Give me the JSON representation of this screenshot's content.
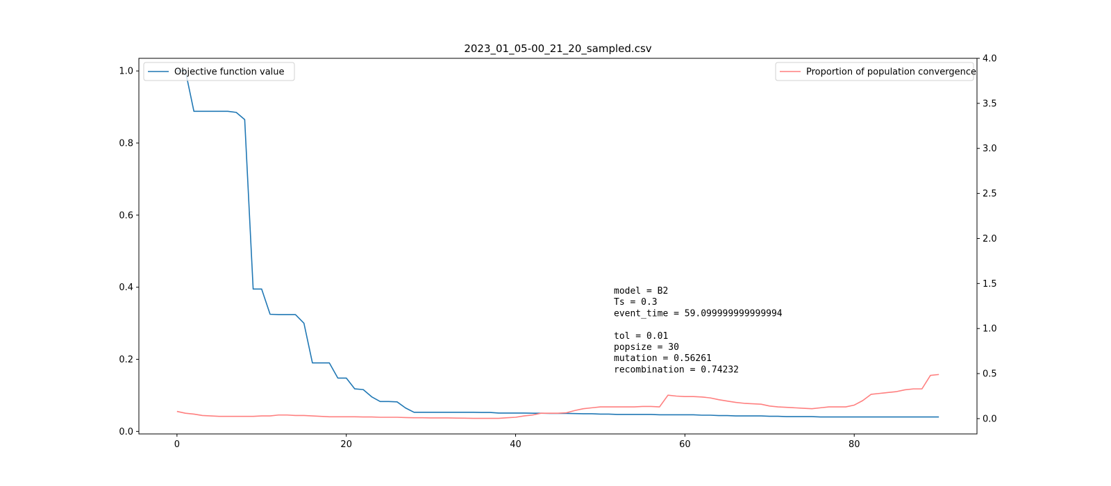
{
  "chart_data": {
    "type": "line",
    "title": "2023_01_05-00_21_20_sampled.csv",
    "xlabel": "",
    "ylabel": "",
    "xlim": [
      -4.5,
      94.5
    ],
    "ylim_left": [
      -0.007,
      1.035
    ],
    "ylim_right": [
      -0.17,
      4.0
    ],
    "x_ticks": [
      0,
      20,
      40,
      60,
      80
    ],
    "y_left_ticks": [
      0.0,
      0.2,
      0.4,
      0.6,
      0.8,
      1.0
    ],
    "y_right_ticks": [
      0.0,
      0.5,
      1.0,
      1.5,
      2.0,
      2.5,
      3.0,
      3.5,
      4.0
    ],
    "legend_left_placement": "upper left",
    "legend_right_placement": "upper right",
    "grid": false,
    "series": [
      {
        "name": "Objective function value",
        "axis": "left",
        "color": "#1f77b4",
        "x": [
          0,
          1,
          2,
          3,
          4,
          5,
          6,
          7,
          8,
          9,
          10,
          11,
          12,
          13,
          14,
          15,
          16,
          17,
          18,
          19,
          20,
          21,
          22,
          23,
          24,
          25,
          26,
          27,
          28,
          29,
          30,
          31,
          32,
          33,
          34,
          35,
          36,
          37,
          38,
          39,
          40,
          41,
          42,
          43,
          44,
          45,
          46,
          47,
          48,
          49,
          50,
          51,
          52,
          53,
          54,
          55,
          56,
          57,
          58,
          59,
          60,
          61,
          62,
          63,
          64,
          65,
          66,
          67,
          68,
          69,
          70,
          71,
          72,
          73,
          74,
          75,
          76,
          77,
          78,
          79,
          80,
          81,
          82,
          83,
          84,
          85,
          86,
          87,
          88,
          89,
          90
        ],
        "values": [
          1.0,
          1.0,
          0.888,
          0.888,
          0.888,
          0.888,
          0.888,
          0.885,
          0.865,
          0.395,
          0.395,
          0.325,
          0.324,
          0.324,
          0.324,
          0.3,
          0.19,
          0.19,
          0.19,
          0.148,
          0.148,
          0.118,
          0.116,
          0.096,
          0.083,
          0.083,
          0.082,
          0.065,
          0.053,
          0.053,
          0.053,
          0.053,
          0.053,
          0.053,
          0.053,
          0.053,
          0.0525,
          0.0525,
          0.051,
          0.051,
          0.051,
          0.051,
          0.0505,
          0.0505,
          0.05,
          0.05,
          0.05,
          0.0495,
          0.049,
          0.049,
          0.048,
          0.048,
          0.047,
          0.047,
          0.047,
          0.047,
          0.047,
          0.046,
          0.046,
          0.046,
          0.046,
          0.046,
          0.045,
          0.045,
          0.044,
          0.044,
          0.043,
          0.043,
          0.043,
          0.043,
          0.042,
          0.042,
          0.041,
          0.041,
          0.041,
          0.041,
          0.04,
          0.04,
          0.04,
          0.04,
          0.04,
          0.04,
          0.04,
          0.04,
          0.04,
          0.04,
          0.04,
          0.04,
          0.04,
          0.04,
          0.04
        ]
      },
      {
        "name": "Proportion of population convergence",
        "axis": "right",
        "color": "#ff7f7f",
        "x": [
          0,
          1,
          2,
          3,
          4,
          5,
          6,
          7,
          8,
          9,
          10,
          11,
          12,
          13,
          14,
          15,
          16,
          17,
          18,
          19,
          20,
          21,
          22,
          23,
          24,
          25,
          26,
          27,
          28,
          29,
          30,
          31,
          32,
          33,
          34,
          35,
          36,
          37,
          38,
          39,
          40,
          41,
          42,
          43,
          44,
          45,
          46,
          47,
          48,
          49,
          50,
          51,
          52,
          53,
          54,
          55,
          56,
          57,
          58,
          59,
          60,
          61,
          62,
          63,
          64,
          65,
          66,
          67,
          68,
          69,
          70,
          71,
          72,
          73,
          74,
          75,
          76,
          77,
          78,
          79,
          80,
          81,
          82,
          83,
          84,
          85,
          86,
          87,
          88,
          89,
          90
        ],
        "values": [
          0.08,
          0.06,
          0.05,
          0.035,
          0.03,
          0.025,
          0.025,
          0.025,
          0.025,
          0.025,
          0.03,
          0.03,
          0.04,
          0.04,
          0.035,
          0.035,
          0.03,
          0.025,
          0.02,
          0.02,
          0.02,
          0.02,
          0.018,
          0.018,
          0.015,
          0.015,
          0.015,
          0.012,
          0.01,
          0.01,
          0.008,
          0.008,
          0.008,
          0.006,
          0.005,
          0.003,
          0.003,
          0.003,
          0.003,
          0.01,
          0.015,
          0.03,
          0.04,
          0.06,
          0.06,
          0.06,
          0.065,
          0.09,
          0.11,
          0.12,
          0.13,
          0.13,
          0.13,
          0.13,
          0.13,
          0.135,
          0.135,
          0.13,
          0.26,
          0.25,
          0.245,
          0.245,
          0.24,
          0.23,
          0.21,
          0.195,
          0.18,
          0.17,
          0.165,
          0.16,
          0.14,
          0.13,
          0.125,
          0.12,
          0.115,
          0.11,
          0.12,
          0.13,
          0.13,
          0.13,
          0.15,
          0.2,
          0.27,
          0.28,
          0.29,
          0.3,
          0.32,
          0.33,
          0.33,
          0.48,
          0.49
        ]
      }
    ],
    "annotation": [
      "model = B2",
      "Ts = 0.3",
      "event_time = 59.099999999999994",
      "",
      "tol = 0.01",
      "popsize = 30",
      "mutation = 0.56261",
      "recombination = 0.74232"
    ]
  }
}
